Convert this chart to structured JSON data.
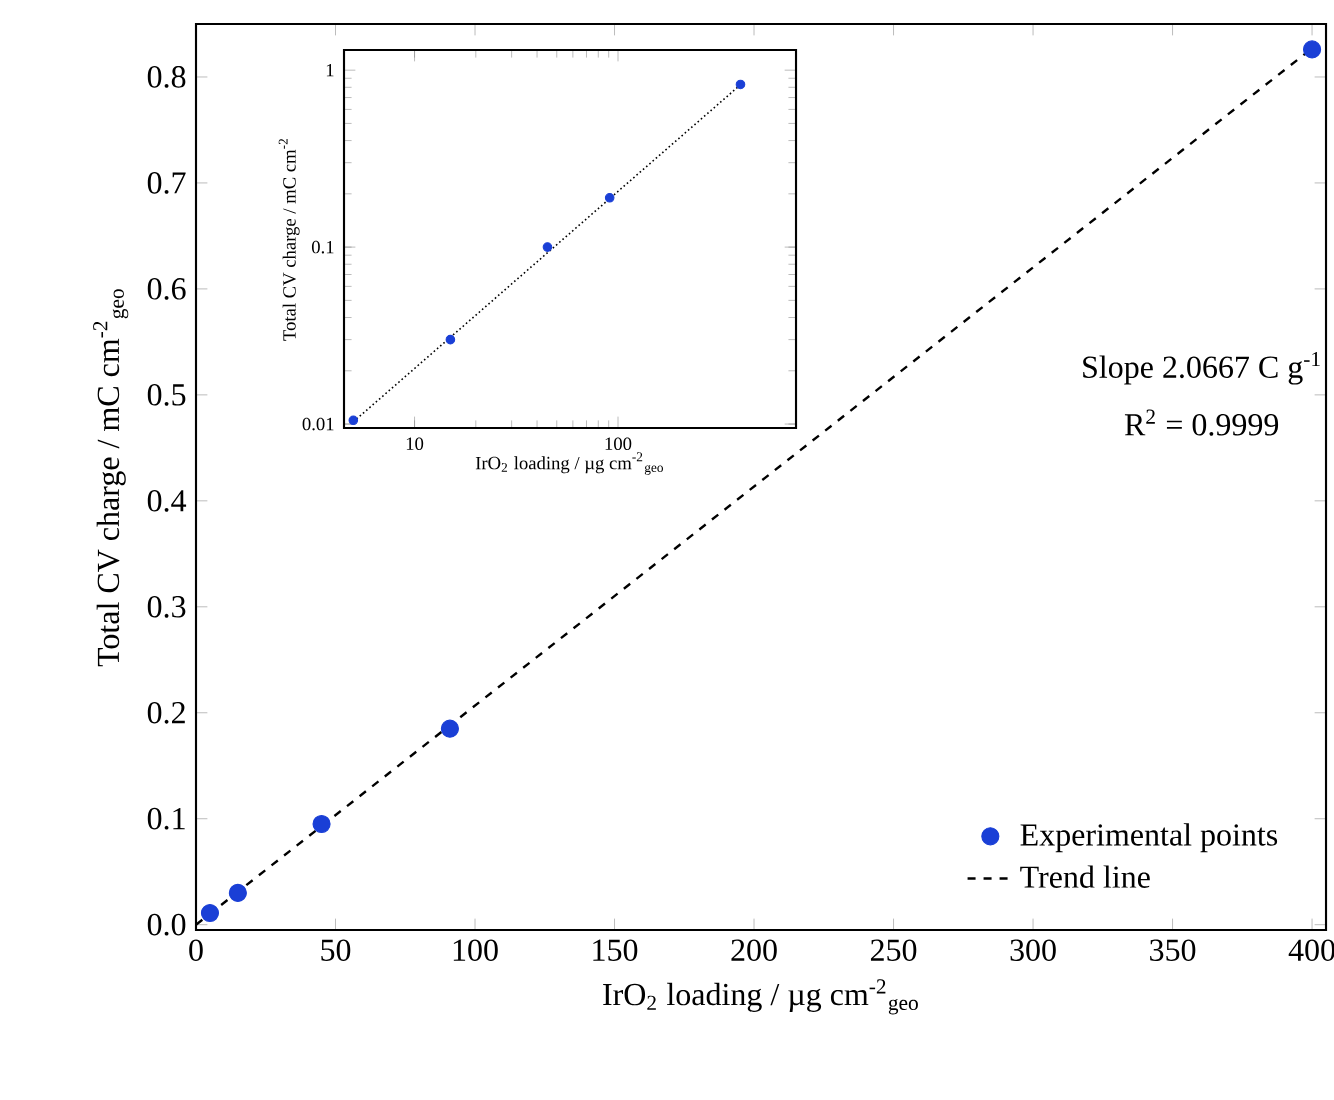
{
  "chart_data": [
    {
      "type": "scatter",
      "xlabel": "IrO$_{2}$ loading / µg cm$^{-2}$$_{geo}$",
      "ylabel": "Total CV charge / mC cm$^{-2}$$_{geo}$",
      "xlim": [
        0,
        405
      ],
      "ylim": [
        -0.005,
        0.85
      ],
      "xticks": [
        0,
        50,
        100,
        150,
        200,
        250,
        300,
        350,
        400
      ],
      "yticks": [
        {
          "value": 0,
          "label": "0.0"
        },
        0.1,
        0.2,
        0.3,
        0.4,
        0.5,
        0.6,
        0.7,
        0.8
      ],
      "legend": "bottom right",
      "annotations": [
        "Slope 2.0667 C g$^{-1}$",
        "R$^{2}$ = 0.9999"
      ],
      "series": [
        {
          "name": "Experimental points",
          "marker": "circle",
          "color": "#1a3fd6",
          "x": [
            5,
            15,
            45,
            91,
            400
          ],
          "values": [
            0.011,
            0.03,
            0.095,
            0.185,
            0.826
          ]
        },
        {
          "name": "Trend line",
          "type": "line",
          "line_style": "dashed",
          "marker": "none",
          "color": "#000000",
          "x": [
            0,
            400
          ],
          "values": [
            0,
            0.827
          ]
        }
      ]
    },
    {
      "type": "scatter",
      "xlabel": "IrO$_{2}$ loading / µg cm$^{-2}$$_{geo}$",
      "ylabel": "Total CV charge / mC cm$^{-2}$",
      "log": "xy",
      "xlim": [
        4.5,
        750
      ],
      "ylim": [
        0.0095,
        1.3
      ],
      "xticks": [
        10,
        100
      ],
      "yticks": [
        0.01,
        0.1,
        1
      ],
      "series": [
        {
          "marker": "circle",
          "color": "#1a3fd6",
          "x": [
            5,
            15,
            45,
            91,
            400
          ],
          "values": [
            0.0105,
            0.03,
            0.1,
            0.19,
            0.83
          ]
        },
        {
          "type": "line",
          "line_style": "dotted",
          "marker": "none",
          "color": "#000000",
          "x": [
            5,
            400
          ],
          "values": [
            0.0103,
            0.827
          ]
        }
      ]
    }
  ]
}
